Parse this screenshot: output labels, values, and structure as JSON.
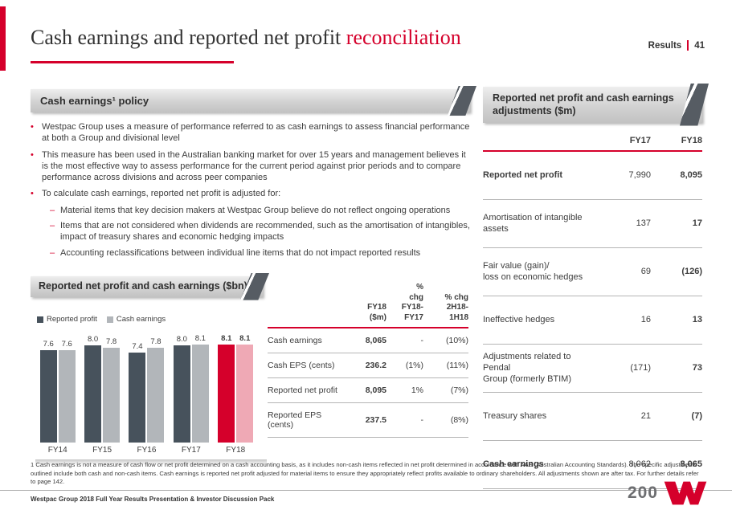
{
  "colors": {
    "red": "#D5002B",
    "dark_bar": "#47525C",
    "light_bar": "#B2B6BA",
    "pink_bar": "#EFA9B5",
    "header_gray": "#D2D2D2",
    "flag_gray": "#565C63"
  },
  "header": {
    "title_black": "Cash earnings and reported net profit ",
    "title_red": "reconciliation",
    "results_label": "Results",
    "page_number": "41"
  },
  "policy": {
    "header": "Cash earnings¹ policy",
    "bullets": [
      {
        "level": 1,
        "text": "Westpac Group uses a measure of performance referred to as cash earnings to assess financial performance at both a Group and divisional level"
      },
      {
        "level": 1,
        "text": "This measure has been used in the Australian banking market for over 15 years and management believes it is the most effective way to assess performance for the current period against prior periods and to compare performance across divisions and across peer companies"
      },
      {
        "level": 1,
        "text": "To calculate cash earnings, reported net profit is adjusted for:"
      },
      {
        "level": 2,
        "text": "Material items that key decision makers at Westpac Group believe do not reflect ongoing operations"
      },
      {
        "level": 2,
        "text": "Items that are not considered when dividends are recommended, such as the amortisation of intangibles, impact of treasury shares and economic hedging impacts"
      },
      {
        "level": 2,
        "text": "Accounting reclassifications between individual line items that do not impact reported results"
      }
    ]
  },
  "chart_data": {
    "type": "bar",
    "title": "Reported net profit and cash earnings ($bn)",
    "categories": [
      "FY14",
      "FY15",
      "FY16",
      "FY17",
      "FY18"
    ],
    "series": [
      {
        "name": "Reported profit",
        "values": [
          7.6,
          8.0,
          7.4,
          8.0,
          8.1
        ]
      },
      {
        "name": "Cash earnings",
        "values": [
          7.6,
          7.8,
          7.8,
          8.1,
          8.1
        ]
      }
    ],
    "ylim": [
      0,
      8.6
    ],
    "grid": false,
    "legend_position": "top-left",
    "highlight_category": "FY18",
    "series_colors": [
      "#47525C",
      "#B2B6BA"
    ],
    "highlight_colors": [
      "#D5002B",
      "#EFA9B5"
    ]
  },
  "summary_table": {
    "col_headers": [
      "FY18\n($m)",
      "%\nchg\nFY18-\nFY17",
      "% chg\n2H18-\n1H18"
    ],
    "rows": [
      {
        "label": "Cash earnings",
        "fy18": "8,065",
        "chg_yoy": "-",
        "chg_hoh": "(10%)"
      },
      {
        "label": "Cash EPS (cents)",
        "fy18": "236.2",
        "chg_yoy": "(1%)",
        "chg_hoh": "(11%)"
      },
      {
        "label": "Reported net profit",
        "fy18": "8,095",
        "chg_yoy": "1%",
        "chg_hoh": "(7%)"
      },
      {
        "label": "Reported EPS (cents)",
        "fy18": "237.5",
        "chg_yoy": "-",
        "chg_hoh": "(8%)"
      }
    ]
  },
  "adjustments_table": {
    "header": "Reported net profit and cash earnings adjustments ($m)",
    "col_headers": [
      "FY17",
      "FY18"
    ],
    "rows": [
      {
        "label": "Reported net profit",
        "fy17": "7,990",
        "fy18": "8,095",
        "bold": true
      },
      {
        "label": "Amortisation of intangible assets",
        "fy17": "137",
        "fy18": "17",
        "bold": false
      },
      {
        "label": "Fair value (gain)/\nloss on economic hedges",
        "fy17": "69",
        "fy18": "(126)",
        "bold": false
      },
      {
        "label": "Ineffective hedges",
        "fy17": "16",
        "fy18": "13",
        "bold": false
      },
      {
        "label": "Adjustments related to Pendal\nGroup (formerly BTIM)",
        "fy17": "(171)",
        "fy18": "73",
        "bold": false
      },
      {
        "label": "Treasury shares",
        "fy17": "21",
        "fy18": "(7)",
        "bold": false
      },
      {
        "label": "Cash earnings",
        "fy17": "8,062",
        "fy18": "8,065",
        "bold": true
      }
    ]
  },
  "footnote": "1 Cash earnings is not a measure of cash flow or net profit determined on a cash accounting basis, as it includes non-cash items reflected in net profit determined in accordance with AAS (Australian Accounting Standards). The specific adjustments outlined include both cash and non-cash items.  Cash earnings is reported net profit adjusted for material items to ensure they appropriately reflect profits available to ordinary shareholders.  All adjustments shown are after tax.  For further details refer to page 142.",
  "footer": {
    "text": "Westpac Group 2018 Full Year Results Presentation & Investor Discussion Pack",
    "logo_text": "200"
  }
}
